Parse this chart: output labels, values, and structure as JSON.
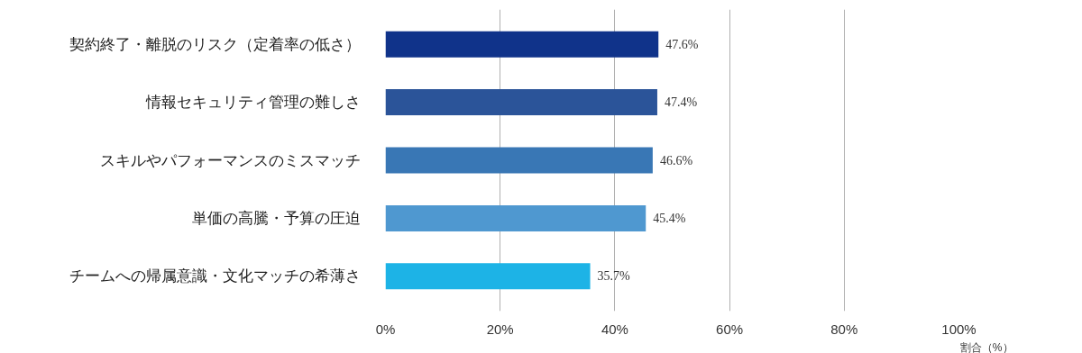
{
  "chart_data": {
    "type": "bar",
    "orientation": "horizontal",
    "xlabel": "割合（%）",
    "categories": [
      "契約終了・離脱のリスク（定着率の低さ）",
      "情報セキュリティ管理の難しさ",
      "スキルやパフォーマンスのミスマッチ",
      "単価の高騰・予算の圧迫",
      "チームへの帰属意識・文化マッチの希薄さ"
    ],
    "values": [
      47.6,
      47.4,
      46.6,
      45.4,
      35.7
    ],
    "colors": [
      "#10338a",
      "#2b5499",
      "#3977b5",
      "#4f98d0",
      "#1db3e6"
    ],
    "value_labels": [
      "47.6%",
      "47.4%",
      "46.6%",
      "45.4%",
      "35.7%"
    ],
    "xlim": [
      0,
      100
    ],
    "xticks": [
      {
        "value": 0,
        "label": "0%"
      },
      {
        "value": 20,
        "label": "20%"
      },
      {
        "value": 40,
        "label": "40%"
      },
      {
        "value": 60,
        "label": "60%"
      },
      {
        "value": 80,
        "label": "80%"
      },
      {
        "value": 100,
        "label": "100%"
      }
    ],
    "grid": "x"
  }
}
